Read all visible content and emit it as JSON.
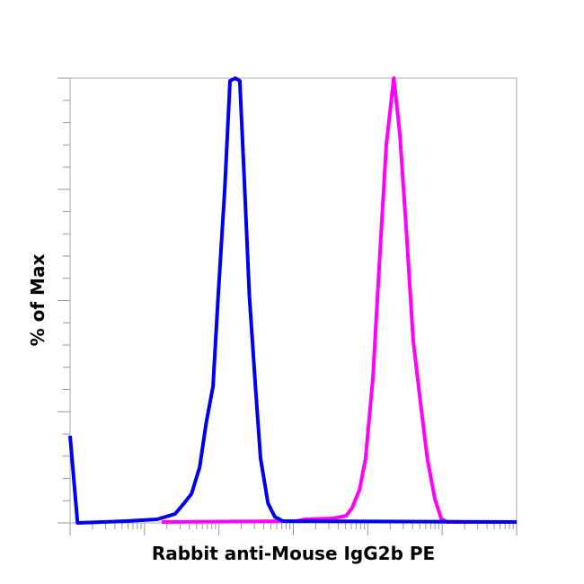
{
  "chart_data": {
    "type": "line",
    "title": "",
    "xlabel": "Rabbit anti-Mouse IgG2b PE",
    "ylabel": "% of Max",
    "xscale": "log",
    "xlim": [
      1,
      1000000
    ],
    "ylim": [
      0,
      100
    ],
    "grid": false,
    "legend": "none",
    "series": [
      {
        "color": "#0000ee",
        "x": [
          1,
          1.26,
          5.6,
          14.8,
          25.7,
          33.9,
          42.7,
          55,
          67.6,
          83.2,
          97.7,
          120,
          141,
          166,
          191,
          219,
          257,
          309,
          363,
          457,
          562,
          724,
          1000000
        ],
        "y": [
          19.6,
          0,
          0.4,
          0.8,
          2.0,
          4.4,
          6.5,
          12.5,
          22.6,
          30.7,
          50.9,
          75.2,
          99.4,
          100,
          99.4,
          77.2,
          50.9,
          30.7,
          14.5,
          4.4,
          1.4,
          0.4,
          0.2
        ]
      },
      {
        "color": "#ff00ff",
        "x": [
          17,
          1096,
          1445,
          3388,
          5129,
          6166,
          7762,
          9333,
          11749,
          14125,
          17783,
          22387,
          26915,
          33113,
          40738,
          51286,
          63096,
          79433,
          97724,
          117490,
          1000000
        ],
        "y": [
          0.2,
          0.4,
          0.8,
          1.0,
          1.6,
          3.4,
          7.5,
          14.5,
          32.7,
          56.8,
          85.1,
          100,
          87.5,
          65.3,
          41.0,
          26.9,
          14.5,
          5.5,
          0.8,
          0.2,
          0.2
        ]
      }
    ]
  }
}
